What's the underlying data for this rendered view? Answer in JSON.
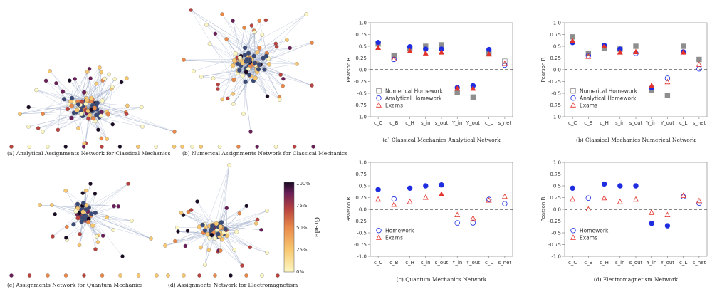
{
  "networks": {
    "caption_a": "(a) Analytical Assignments Network for Classical Mechanics",
    "caption_b": "(b) Numerical Assignments Network for Classical Mechanics",
    "caption_c": "(c) Assignments Network for Quantum Mechanics",
    "caption_d": "(d) Assignments Network for Electromagnetism",
    "colorbar": {
      "label": "Grade",
      "ticks": [
        "100%",
        "75%",
        "50%",
        "25%",
        "0%"
      ],
      "colors": [
        "#fcf7c2",
        "#f8c76f",
        "#e8894a",
        "#b8433f",
        "#6a1e57",
        "#1a0b24"
      ]
    }
  },
  "colors": {
    "homework_filled": "#1f2de0",
    "numerical_square": "#8e8e8e",
    "exam_triangle": "#e3332b",
    "edge": "#9aa8c6",
    "node_blue": "#3a4a78"
  },
  "chart_data": [
    {
      "type": "scatter",
      "caption": "(a) Classical Mechanics Analytical Network",
      "ylabel": "Pearson R",
      "ylim": [
        -1.0,
        1.0
      ],
      "yticks": [
        "1.0",
        "0.75",
        "0.5",
        "0.25",
        "0.0",
        "-0.25",
        "-0.5",
        "-0.75",
        "-1.0"
      ],
      "categories": [
        "c_C",
        "c_B",
        "c_H",
        "s_in",
        "s_out",
        "Y_in",
        "Y_out",
        "c_L",
        "s_net"
      ],
      "legend": [
        "Numerical Homework",
        "Analytical Homework",
        "Exams"
      ],
      "legend_position": "lower-left",
      "series": [
        {
          "name": "Numerical Homework",
          "marker": "square",
          "filled": [
            true,
            true,
            true,
            true,
            true,
            true,
            true,
            true,
            false
          ],
          "values": [
            0.55,
            0.3,
            0.45,
            0.5,
            0.53,
            -0.48,
            -0.58,
            0.35,
            0.18
          ]
        },
        {
          "name": "Analytical Homework",
          "marker": "circle",
          "filled": [
            true,
            false,
            true,
            true,
            true,
            true,
            true,
            true,
            false
          ],
          "values": [
            0.58,
            0.22,
            0.49,
            0.44,
            0.44,
            -0.38,
            -0.34,
            0.43,
            0.1
          ]
        },
        {
          "name": "Exams",
          "marker": "triangle",
          "filled": [
            true,
            false,
            true,
            true,
            true,
            true,
            true,
            true,
            false
          ],
          "values": [
            0.47,
            0.23,
            0.4,
            0.35,
            0.37,
            -0.4,
            -0.4,
            0.33,
            0.13
          ]
        }
      ]
    },
    {
      "type": "scatter",
      "caption": "(b) Classical Mechanics Numerical Network",
      "ylabel": "Pearson R",
      "ylim": [
        -1.0,
        1.0
      ],
      "yticks": [
        "1.0",
        "0.75",
        "0.5",
        "0.25",
        "0.0",
        "-0.25",
        "-0.5",
        "-0.75",
        "-1.0"
      ],
      "categories": [
        "c_C",
        "c_B",
        "c_H",
        "s_in",
        "s_out",
        "Y_in",
        "Y_out",
        "c_L",
        "s_net"
      ],
      "legend": [
        "Numerical Homework",
        "Analytical Homework",
        "Exams"
      ],
      "legend_position": "lower-left",
      "series": [
        {
          "name": "Numerical Homework",
          "marker": "square",
          "filled": [
            true,
            true,
            true,
            true,
            true,
            true,
            true,
            true,
            true
          ],
          "values": [
            0.7,
            0.35,
            0.45,
            0.44,
            0.5,
            -0.43,
            -0.55,
            0.5,
            0.22
          ]
        },
        {
          "name": "Analytical Homework",
          "marker": "circle",
          "filled": [
            true,
            false,
            true,
            true,
            false,
            true,
            false,
            true,
            false
          ],
          "values": [
            0.58,
            0.3,
            0.52,
            0.44,
            0.35,
            -0.38,
            -0.18,
            0.38,
            0.02
          ]
        },
        {
          "name": "Exams",
          "marker": "triangle",
          "filled": [
            true,
            false,
            true,
            true,
            true,
            true,
            false,
            true,
            false
          ],
          "values": [
            0.61,
            0.28,
            0.5,
            0.37,
            0.38,
            -0.34,
            -0.26,
            0.37,
            0.11
          ]
        }
      ]
    },
    {
      "type": "scatter",
      "caption": "(c) Quantum Mechanics Network",
      "ylabel": "Pearson R",
      "ylim": [
        -1.0,
        1.0
      ],
      "yticks": [
        "1.0",
        "0.75",
        "0.5",
        "0.25",
        "0.0",
        "-0.25",
        "-0.5",
        "-0.75",
        "-1.0"
      ],
      "categories": [
        "c_C",
        "c_B",
        "c_H",
        "s_in",
        "s_out",
        "Y_in",
        "Y_out",
        "c_L",
        "s_net"
      ],
      "legend": [
        "Homework",
        "Exams"
      ],
      "legend_position": "lower-left",
      "series": [
        {
          "name": "Homework",
          "marker": "circle",
          "filled": [
            true,
            false,
            true,
            true,
            true,
            false,
            false,
            false,
            false
          ],
          "values": [
            0.42,
            0.22,
            0.45,
            0.5,
            0.52,
            -0.29,
            -0.29,
            0.21,
            0.12
          ]
        },
        {
          "name": "Exams",
          "marker": "triangle",
          "filled": [
            false,
            false,
            false,
            false,
            true,
            false,
            false,
            false,
            false
          ],
          "values": [
            0.21,
            0.1,
            0.16,
            0.25,
            0.32,
            -0.12,
            -0.19,
            0.19,
            0.27
          ]
        }
      ]
    },
    {
      "type": "scatter",
      "caption": "(d) Electromagnetism Network",
      "ylabel": "Pearson R",
      "ylim": [
        -1.0,
        1.0
      ],
      "yticks": [
        "1.0",
        "0.75",
        "0.5",
        "0.25",
        "0.0",
        "-0.25",
        "-0.5",
        "-0.75",
        "-1.0"
      ],
      "categories": [
        "c_C",
        "c_B",
        "c_H",
        "s_in",
        "s_out",
        "Y_in",
        "Y_out",
        "c_L",
        "s_net"
      ],
      "legend": [
        "Homework",
        "Exams"
      ],
      "legend_position": "lower-left",
      "series": [
        {
          "name": "Homework",
          "marker": "circle",
          "filled": [
            true,
            false,
            true,
            true,
            true,
            true,
            true,
            false,
            false
          ],
          "values": [
            0.45,
            0.24,
            0.54,
            0.5,
            0.5,
            -0.3,
            -0.35,
            0.27,
            0.13
          ]
        },
        {
          "name": "Exams",
          "marker": "triangle",
          "filled": [
            false,
            false,
            false,
            false,
            false,
            false,
            false,
            false,
            false
          ],
          "values": [
            0.21,
            0.0,
            0.24,
            0.16,
            0.21,
            -0.07,
            -0.12,
            0.29,
            0.18
          ]
        }
      ]
    }
  ]
}
